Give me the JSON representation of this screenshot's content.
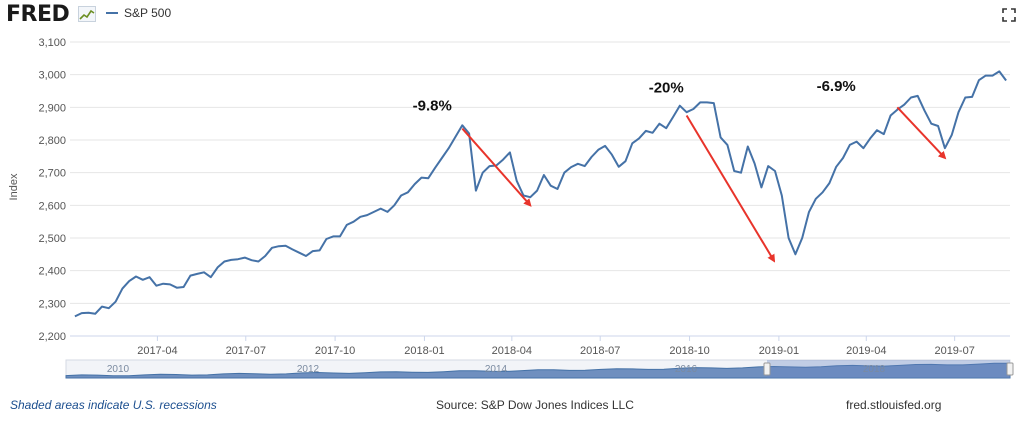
{
  "header": {
    "logo_text": "FRED",
    "logo_icon": "line-graph-icon",
    "series_name": "S&P 500",
    "fullscreen_icon": "fullscreen-icon"
  },
  "chart_data": {
    "type": "line",
    "ylabel": "Index",
    "xlabel": "",
    "ylim": [
      2200,
      3100
    ],
    "yticks": [
      "2,200",
      "2,300",
      "2,400",
      "2,500",
      "2,600",
      "2,700",
      "2,800",
      "2,900",
      "3,000",
      "3,100"
    ],
    "xticks": [
      {
        "date": "2017-04-01",
        "label": "2017-04"
      },
      {
        "date": "2017-07-01",
        "label": "2017-07"
      },
      {
        "date": "2017-10-01",
        "label": "2017-10"
      },
      {
        "date": "2018-01-01",
        "label": "2018-01"
      },
      {
        "date": "2018-04-01",
        "label": "2018-04"
      },
      {
        "date": "2018-07-01",
        "label": "2018-07"
      },
      {
        "date": "2018-10-01",
        "label": "2018-10"
      },
      {
        "date": "2019-01-01",
        "label": "2019-01"
      },
      {
        "date": "2019-04-01",
        "label": "2019-04"
      },
      {
        "date": "2019-07-01",
        "label": "2019-07"
      }
    ],
    "grid": true,
    "series": [
      {
        "name": "S&P 500",
        "color": "#4572a7",
        "points": [
          [
            "2017-01-06",
            2260
          ],
          [
            "2017-01-13",
            2270
          ],
          [
            "2017-01-20",
            2271
          ],
          [
            "2017-01-27",
            2268
          ],
          [
            "2017-02-03",
            2290
          ],
          [
            "2017-02-10",
            2285
          ],
          [
            "2017-02-17",
            2305
          ],
          [
            "2017-02-24",
            2345
          ],
          [
            "2017-03-03",
            2368
          ],
          [
            "2017-03-10",
            2382
          ],
          [
            "2017-03-17",
            2372
          ],
          [
            "2017-03-24",
            2380
          ],
          [
            "2017-03-31",
            2354
          ],
          [
            "2017-04-07",
            2360
          ],
          [
            "2017-04-14",
            2358
          ],
          [
            "2017-04-21",
            2348
          ],
          [
            "2017-04-28",
            2350
          ],
          [
            "2017-05-05",
            2385
          ],
          [
            "2017-05-12",
            2390
          ],
          [
            "2017-05-19",
            2395
          ],
          [
            "2017-05-26",
            2380
          ],
          [
            "2017-06-02",
            2410
          ],
          [
            "2017-06-09",
            2428
          ],
          [
            "2017-06-16",
            2433
          ],
          [
            "2017-06-23",
            2435
          ],
          [
            "2017-06-30",
            2440
          ],
          [
            "2017-07-07",
            2432
          ],
          [
            "2017-07-14",
            2428
          ],
          [
            "2017-07-21",
            2445
          ],
          [
            "2017-07-28",
            2470
          ],
          [
            "2017-08-04",
            2475
          ],
          [
            "2017-08-11",
            2476
          ],
          [
            "2017-08-18",
            2465
          ],
          [
            "2017-08-25",
            2455
          ],
          [
            "2017-09-01",
            2445
          ],
          [
            "2017-09-08",
            2460
          ],
          [
            "2017-09-15",
            2462
          ],
          [
            "2017-09-22",
            2497
          ],
          [
            "2017-09-29",
            2505
          ],
          [
            "2017-10-06",
            2505
          ],
          [
            "2017-10-13",
            2540
          ],
          [
            "2017-10-20",
            2550
          ],
          [
            "2017-10-27",
            2565
          ],
          [
            "2017-11-03",
            2570
          ],
          [
            "2017-11-10",
            2580
          ],
          [
            "2017-11-17",
            2590
          ],
          [
            "2017-11-24",
            2580
          ],
          [
            "2017-12-01",
            2600
          ],
          [
            "2017-12-08",
            2630
          ],
          [
            "2017-12-15",
            2640
          ],
          [
            "2017-12-22",
            2665
          ],
          [
            "2017-12-29",
            2685
          ],
          [
            "2018-01-05",
            2683
          ],
          [
            "2018-01-12",
            2715
          ],
          [
            "2018-01-19",
            2745
          ],
          [
            "2018-01-26",
            2775
          ],
          [
            "2018-02-02",
            2810
          ],
          [
            "2018-02-09",
            2845
          ],
          [
            "2018-02-16",
            2820
          ],
          [
            "2018-02-23",
            2645
          ],
          [
            "2018-03-02",
            2700
          ],
          [
            "2018-03-09",
            2720
          ],
          [
            "2018-03-16",
            2722
          ],
          [
            "2018-03-23",
            2740
          ],
          [
            "2018-03-30",
            2762
          ],
          [
            "2018-04-06",
            2675
          ],
          [
            "2018-04-13",
            2630
          ],
          [
            "2018-04-20",
            2625
          ],
          [
            "2018-04-27",
            2645
          ],
          [
            "2018-05-04",
            2693
          ],
          [
            "2018-05-11",
            2660
          ],
          [
            "2018-05-18",
            2650
          ],
          [
            "2018-05-25",
            2700
          ],
          [
            "2018-06-01",
            2717
          ],
          [
            "2018-06-08",
            2727
          ],
          [
            "2018-06-15",
            2720
          ],
          [
            "2018-06-22",
            2748
          ],
          [
            "2018-06-29",
            2770
          ],
          [
            "2018-07-06",
            2782
          ],
          [
            "2018-07-13",
            2755
          ],
          [
            "2018-07-20",
            2718
          ],
          [
            "2018-07-27",
            2735
          ],
          [
            "2018-08-03",
            2790
          ],
          [
            "2018-08-10",
            2805
          ],
          [
            "2018-08-17",
            2828
          ],
          [
            "2018-08-24",
            2822
          ],
          [
            "2018-08-31",
            2850
          ],
          [
            "2018-09-07",
            2836
          ],
          [
            "2018-09-14",
            2870
          ],
          [
            "2018-09-21",
            2905
          ],
          [
            "2018-09-28",
            2885
          ],
          [
            "2018-10-05",
            2895
          ],
          [
            "2018-10-12",
            2915
          ],
          [
            "2018-10-19",
            2915
          ],
          [
            "2018-10-26",
            2913
          ],
          [
            "2018-11-02",
            2808
          ],
          [
            "2018-11-09",
            2785
          ],
          [
            "2018-11-16",
            2705
          ],
          [
            "2018-11-23",
            2700
          ],
          [
            "2018-11-30",
            2780
          ],
          [
            "2018-12-07",
            2728
          ],
          [
            "2018-12-14",
            2655
          ],
          [
            "2018-12-21",
            2720
          ],
          [
            "2018-12-28",
            2705
          ],
          [
            "2019-01-04",
            2630
          ],
          [
            "2019-01-11",
            2500
          ],
          [
            "2019-01-18",
            2450
          ],
          [
            "2019-01-25",
            2500
          ],
          [
            "2019-02-01",
            2580
          ],
          [
            "2019-02-08",
            2620
          ],
          [
            "2019-02-15",
            2640
          ],
          [
            "2019-02-22",
            2668
          ],
          [
            "2019-03-01",
            2718
          ],
          [
            "2019-03-08",
            2745
          ],
          [
            "2019-03-15",
            2785
          ],
          [
            "2019-03-22",
            2795
          ],
          [
            "2019-03-29",
            2775
          ],
          [
            "2019-04-05",
            2805
          ],
          [
            "2019-04-12",
            2830
          ],
          [
            "2019-04-19",
            2818
          ],
          [
            "2019-04-26",
            2875
          ],
          [
            "2019-05-03",
            2893
          ],
          [
            "2019-05-10",
            2908
          ],
          [
            "2019-05-17",
            2930
          ],
          [
            "2019-05-24",
            2935
          ],
          [
            "2019-05-31",
            2890
          ],
          [
            "2019-06-07",
            2850
          ],
          [
            "2019-06-14",
            2843
          ],
          [
            "2019-06-21",
            2775
          ],
          [
            "2019-06-28",
            2815
          ],
          [
            "2019-07-05",
            2885
          ],
          [
            "2019-07-12",
            2930
          ],
          [
            "2019-07-19",
            2932
          ],
          [
            "2019-07-26",
            2983
          ],
          [
            "2019-08-02",
            2997
          ],
          [
            "2019-08-09",
            2997
          ],
          [
            "2019-08-16",
            3010
          ],
          [
            "2019-08-23",
            2982
          ]
        ]
      }
    ],
    "annotations": [
      {
        "label": "-9.8%",
        "label_at": [
          "2018-01-09",
          2890
        ],
        "arrow_from": [
          "2018-02-09",
          2835
        ],
        "arrow_to": [
          "2018-04-20",
          2600
        ]
      },
      {
        "label": "-20%",
        "label_at": [
          "2018-09-07",
          2945
        ],
        "arrow_from": [
          "2018-09-28",
          2875
        ],
        "arrow_to": [
          "2018-12-27",
          2430
        ]
      },
      {
        "label": "-6.9%",
        "label_at": [
          "2019-03-01",
          2950
        ],
        "arrow_from": [
          "2019-05-03",
          2900
        ],
        "arrow_to": [
          "2019-06-21",
          2745
        ]
      }
    ],
    "annotation_color": "#e8342b",
    "navigator": {
      "tick_labels": [
        "2010",
        "2012",
        "2014",
        "2016",
        "2018"
      ]
    }
  },
  "footer": {
    "recession_note": "Shaded areas indicate U.S. recessions",
    "source": "Source: S&P Dow Jones Indices LLC",
    "site": "fred.stlouisfed.org"
  }
}
